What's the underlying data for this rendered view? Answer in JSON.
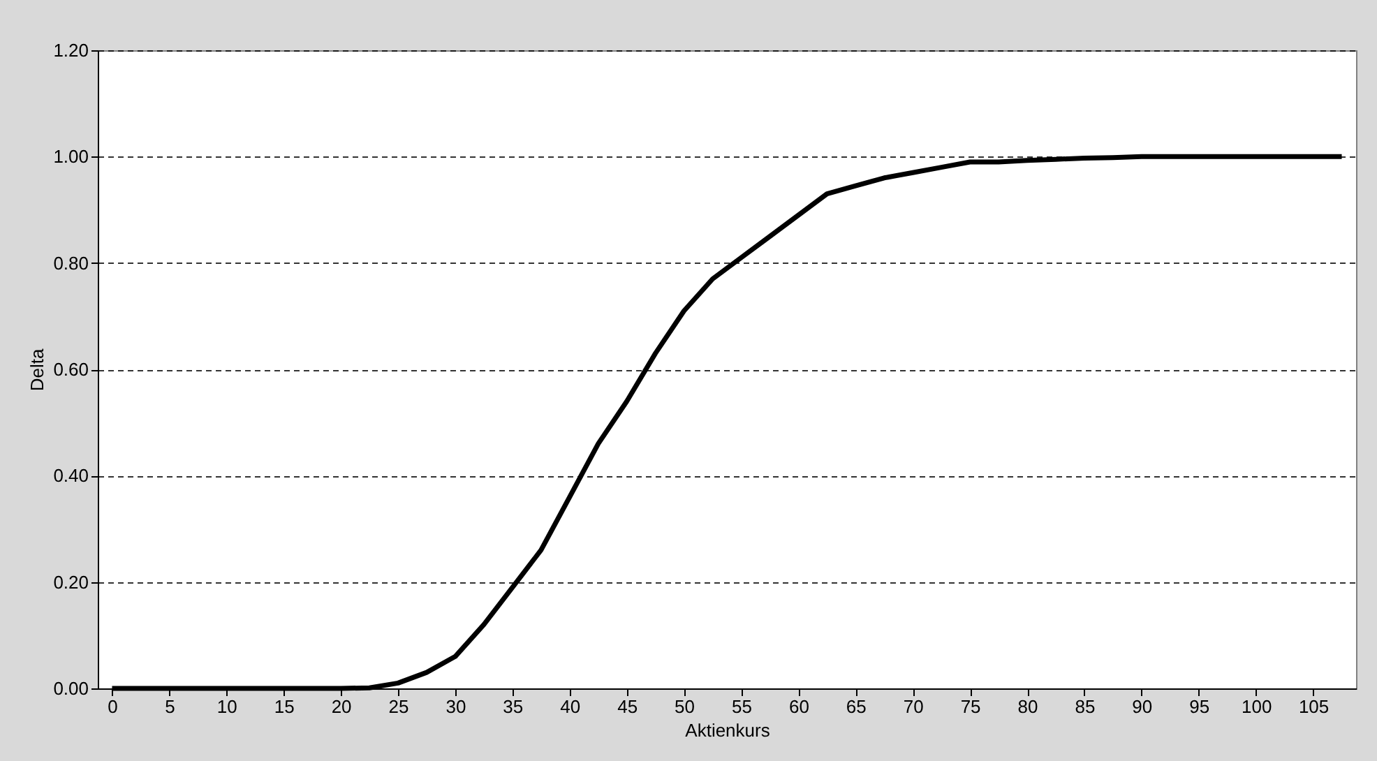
{
  "chart_data": {
    "type": "line",
    "xlabel": "Aktienkurs",
    "ylabel": "Delta",
    "x": [
      0,
      2.5,
      5,
      7.5,
      10,
      12.5,
      15,
      17.5,
      20,
      22.5,
      25,
      27.5,
      30,
      32.5,
      35,
      37.5,
      40,
      42.5,
      45,
      47.5,
      50,
      52.5,
      55,
      57.5,
      60,
      62.5,
      65,
      67.5,
      70,
      72.5,
      75,
      77.5,
      80,
      82.5,
      85,
      87.5,
      90,
      92.5,
      95,
      97.5,
      100,
      102.5,
      105,
      107.5
    ],
    "series": [
      {
        "color": "#000000",
        "values": [
          0,
          0,
          0,
          0,
          0,
          0,
          0,
          0,
          0,
          0.001,
          0.01,
          0.03,
          0.06,
          0.12,
          0.19,
          0.26,
          0.36,
          0.46,
          0.54,
          0.63,
          0.71,
          0.77,
          0.81,
          0.85,
          0.89,
          0.93,
          0.945,
          0.96,
          0.97,
          0.98,
          0.99,
          0.99,
          0.993,
          0.995,
          0.997,
          0.998,
          1.0,
          1.0,
          1.0,
          1.0,
          1.0,
          1.0,
          1.0,
          1.0
        ]
      }
    ],
    "xlim": [
      -1.25,
      108.75
    ],
    "xticks": [
      0,
      5,
      10,
      15,
      20,
      25,
      30,
      35,
      40,
      45,
      50,
      55,
      60,
      65,
      70,
      75,
      80,
      85,
      90,
      95,
      100,
      105
    ],
    "ylim": [
      0,
      1.2
    ],
    "yticks": [
      {
        "value": 0,
        "label": "0.00"
      },
      {
        "value": 0.2,
        "label": "0.20"
      },
      {
        "value": 0.4,
        "label": "0.40"
      },
      {
        "value": 0.6,
        "label": "0.60"
      },
      {
        "value": 0.8,
        "label": "0.80"
      },
      {
        "value": 1.0,
        "label": "1.00"
      },
      {
        "value": 1.2,
        "label": "1.20"
      }
    ],
    "grid": "y",
    "marker": "none",
    "line_style": "solid"
  }
}
